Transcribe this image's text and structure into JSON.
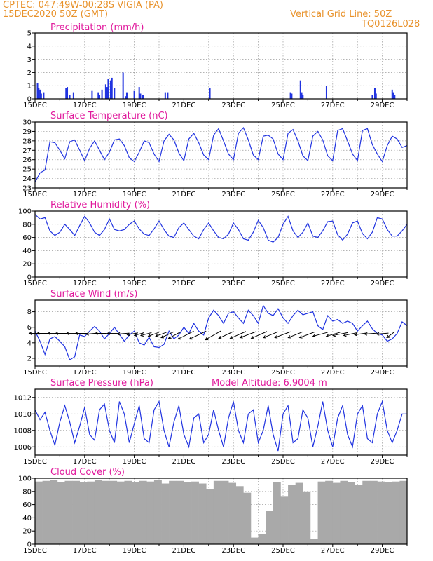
{
  "header": {
    "line1": "CPTEC:   047:49W-00:28S   VIGIA (PA)",
    "line2": "15DEC2020 50Z (GMT)",
    "right1": "Vertical Grid Line: 50Z",
    "right2": "TQ0126L028"
  },
  "colors": {
    "header": "#e8922b",
    "title": "#e0199c",
    "line": "#2033e0",
    "bar": "#2033e0",
    "cloud": "#a9a9a9",
    "grid": "#9a9a9a"
  },
  "xlabels": [
    "15DEC",
    "17DEC",
    "19DEC",
    "21DEC",
    "23DEC",
    "25DEC",
    "27DEC",
    "29DEC"
  ],
  "chart_data": [
    {
      "type": "bar",
      "title": "Precipitation (mm/h)",
      "xlabel": "",
      "ylabel": "",
      "x_range": [
        0,
        15
      ],
      "ylim": [
        0,
        5
      ],
      "yticks": [
        "0",
        "1",
        "2",
        "3",
        "4",
        "5"
      ],
      "grid": true,
      "x": [
        0.1,
        0.15,
        0.2,
        0.25,
        0.35,
        1.25,
        1.3,
        1.4,
        1.55,
        2.3,
        2.55,
        2.6,
        2.7,
        2.85,
        2.9,
        2.95,
        3.05,
        3.1,
        3.2,
        3.55,
        3.65,
        3.7,
        4.0,
        4.2,
        4.25,
        4.35,
        5.25,
        5.35,
        7.05,
        10.3,
        10.35,
        10.7,
        10.75,
        10.8,
        11.75,
        13.6,
        13.7,
        13.75,
        14.4,
        14.45,
        14.5
      ],
      "values": [
        1.2,
        0.8,
        0.7,
        0.4,
        0.5,
        0.8,
        0.9,
        0.3,
        0.5,
        0.6,
        0.5,
        0.3,
        0.7,
        1.1,
        0.9,
        1.5,
        1.4,
        1.6,
        0.8,
        2.0,
        0.2,
        0.5,
        0.6,
        0.9,
        0.4,
        0.3,
        0.5,
        0.5,
        0.8,
        0.5,
        0.4,
        1.4,
        0.5,
        0.3,
        1.0,
        0.3,
        0.8,
        0.4,
        0.7,
        0.5,
        0.3
      ]
    },
    {
      "type": "line",
      "title": "Surface Temperature (nC)",
      "xlabel": "",
      "ylabel": "",
      "x_range": [
        0,
        15
      ],
      "ylim": [
        23,
        30
      ],
      "yticks": [
        "23",
        "24",
        "25",
        "26",
        "27",
        "28",
        "29",
        "30"
      ],
      "grid": true,
      "series": [
        {
          "x": [
            0,
            0.2,
            0.4,
            0.6,
            0.8,
            1.0,
            1.2,
            1.4,
            1.6,
            1.8,
            2.0,
            2.2,
            2.4,
            2.6,
            2.8,
            3.0,
            3.2,
            3.4,
            3.6,
            3.8,
            4.0,
            4.2,
            4.4,
            4.6,
            4.8,
            5.0,
            5.2,
            5.4,
            5.6,
            5.8,
            6.0,
            6.2,
            6.4,
            6.6,
            6.8,
            7.0,
            7.2,
            7.4,
            7.6,
            7.8,
            8.0,
            8.2,
            8.4,
            8.6,
            8.8,
            9.0,
            9.2,
            9.4,
            9.6,
            9.8,
            10.0,
            10.2,
            10.4,
            10.6,
            10.8,
            11.0,
            11.2,
            11.4,
            11.6,
            11.8,
            12.0,
            12.2,
            12.4,
            12.6,
            12.8,
            13.0,
            13.2,
            13.4,
            13.6,
            13.8,
            14.0,
            14.2,
            14.4,
            14.6,
            14.8,
            15.0
          ],
          "values": [
            23.6,
            24.6,
            24.9,
            27.9,
            27.8,
            27.0,
            26.1,
            27.9,
            28.1,
            27.0,
            25.9,
            27.2,
            28.0,
            27.0,
            26.0,
            26.8,
            28.1,
            28.2,
            27.5,
            26.2,
            25.8,
            26.8,
            28.0,
            27.8,
            26.6,
            25.8,
            28.0,
            28.7,
            28.1,
            26.7,
            25.9,
            28.2,
            28.8,
            27.8,
            26.5,
            26.0,
            28.6,
            29.3,
            28.0,
            26.6,
            26.0,
            28.8,
            29.4,
            28.1,
            26.5,
            26.0,
            28.5,
            28.6,
            28.2,
            26.6,
            26.0,
            28.8,
            29.2,
            28.0,
            26.4,
            25.9,
            28.5,
            29.0,
            28.1,
            26.4,
            25.9,
            29.1,
            29.3,
            28.0,
            26.6,
            25.9,
            29.1,
            29.3,
            27.6,
            26.6,
            25.8,
            27.5,
            28.5,
            28.2,
            27.3,
            27.5
          ]
        }
      ]
    },
    {
      "type": "line",
      "title": "Relative Humidity (%)",
      "xlabel": "",
      "ylabel": "",
      "x_range": [
        0,
        15
      ],
      "ylim": [
        0,
        100
      ],
      "yticks": [
        "0",
        "20",
        "40",
        "60",
        "80",
        "100"
      ],
      "grid": true,
      "series": [
        {
          "x": [
            0,
            0.2,
            0.4,
            0.6,
            0.8,
            1.0,
            1.2,
            1.4,
            1.6,
            1.8,
            2.0,
            2.2,
            2.4,
            2.6,
            2.8,
            3.0,
            3.2,
            3.4,
            3.6,
            3.8,
            4.0,
            4.2,
            4.4,
            4.6,
            4.8,
            5.0,
            5.2,
            5.4,
            5.6,
            5.8,
            6.0,
            6.2,
            6.4,
            6.6,
            6.8,
            7.0,
            7.2,
            7.4,
            7.6,
            7.8,
            8.0,
            8.2,
            8.4,
            8.6,
            8.8,
            9.0,
            9.2,
            9.4,
            9.6,
            9.8,
            10.0,
            10.2,
            10.4,
            10.6,
            10.8,
            11.0,
            11.2,
            11.4,
            11.6,
            11.8,
            12.0,
            12.2,
            12.4,
            12.6,
            12.8,
            13.0,
            13.2,
            13.4,
            13.6,
            13.8,
            14.0,
            14.2,
            14.4,
            14.6,
            14.8,
            15.0
          ],
          "values": [
            95,
            88,
            90,
            70,
            63,
            68,
            80,
            72,
            63,
            78,
            92,
            82,
            68,
            63,
            72,
            88,
            72,
            70,
            72,
            80,
            85,
            73,
            65,
            63,
            73,
            85,
            72,
            62,
            60,
            75,
            82,
            72,
            62,
            58,
            72,
            82,
            70,
            60,
            58,
            65,
            82,
            72,
            58,
            56,
            68,
            86,
            75,
            56,
            53,
            60,
            80,
            92,
            70,
            60,
            68,
            82,
            62,
            60,
            70,
            84,
            85,
            64,
            56,
            65,
            82,
            85,
            66,
            58,
            68,
            90,
            88,
            72,
            62,
            62,
            70,
            80
          ]
        }
      ]
    },
    {
      "type": "line",
      "title": "Surface Wind (m/s)",
      "xlabel": "",
      "ylabel": "",
      "x_range": [
        0,
        15
      ],
      "ylim": [
        1,
        9.5
      ],
      "yticks": [
        "2",
        "4",
        "6",
        "8"
      ],
      "grid": true,
      "series": [
        {
          "x": [
            0,
            0.2,
            0.4,
            0.6,
            0.8,
            1.0,
            1.2,
            1.4,
            1.6,
            1.8,
            2.0,
            2.2,
            2.4,
            2.6,
            2.8,
            3.0,
            3.2,
            3.4,
            3.6,
            3.8,
            4.0,
            4.2,
            4.4,
            4.6,
            4.8,
            5.0,
            5.2,
            5.4,
            5.6,
            5.8,
            6.0,
            6.2,
            6.4,
            6.6,
            6.8,
            7.0,
            7.2,
            7.4,
            7.6,
            7.8,
            8.0,
            8.2,
            8.4,
            8.6,
            8.8,
            9.0,
            9.2,
            9.4,
            9.6,
            9.8,
            10.0,
            10.2,
            10.4,
            10.6,
            10.8,
            11.0,
            11.2,
            11.4,
            11.6,
            11.8,
            12.0,
            12.2,
            12.4,
            12.6,
            12.8,
            13.0,
            13.2,
            13.4,
            13.6,
            13.8,
            14.0,
            14.2,
            14.4,
            14.6,
            14.8,
            15.0
          ],
          "values": [
            5.5,
            4.2,
            2.5,
            4.5,
            4.8,
            4.2,
            3.5,
            1.8,
            2.2,
            5.0,
            4.8,
            5.5,
            6.1,
            5.5,
            4.5,
            5.2,
            6.0,
            5.1,
            4.2,
            5.0,
            5.5,
            4.0,
            3.7,
            4.7,
            3.5,
            3.4,
            3.8,
            5.5,
            4.5,
            5.0,
            6.0,
            5.2,
            6.5,
            5.5,
            5.0,
            7.2,
            8.2,
            7.5,
            6.5,
            7.8,
            8.0,
            7.2,
            6.5,
            8.2,
            7.5,
            6.5,
            8.8,
            7.8,
            7.5,
            8.4,
            7.2,
            6.5,
            7.5,
            8.2,
            7.6,
            7.8,
            8.0,
            6.2,
            5.7,
            7.5,
            6.8,
            7.0,
            6.5,
            6.8,
            6.5,
            5.5,
            6.2,
            6.8,
            5.8,
            5.2,
            5.0,
            4.2,
            4.5,
            5.2,
            6.7,
            6.2
          ]
        }
      ],
      "vectors": {
        "x": [
          0.2,
          0.55,
          0.95,
          1.3,
          1.7,
          2.1,
          2.5,
          2.9,
          3.35,
          3.8,
          4.15,
          4.4,
          4.7,
          5.0,
          5.3,
          5.6,
          5.9,
          6.4,
          6.9,
          7.5,
          8.0,
          8.5,
          8.9,
          9.35,
          9.8,
          10.3,
          10.8,
          11.3,
          11.8,
          12.3,
          12.6,
          13.0,
          13.4,
          13.8,
          14.25,
          14.5
        ],
        "dx": [
          -1.1,
          -1.2,
          -1.1,
          -1.2,
          -1.1,
          -1.2,
          -1.1,
          -1.2,
          -1.1,
          -1.2,
          -1.1,
          -1.0,
          -1.1,
          -1.1,
          -1.1,
          -1.3,
          -1.3,
          -1.6,
          -1.7,
          -1.6,
          -1.5,
          -1.6,
          -1.6,
          -1.6,
          -1.5,
          -1.6,
          -1.5,
          -1.6,
          -1.5,
          -1.4,
          -1.5,
          -1.4,
          -1.3,
          -1.3,
          -1.2,
          -0.8
        ],
        "dy": [
          0,
          0,
          0,
          0,
          0,
          0,
          -0.1,
          0,
          0,
          -0.1,
          -0.2,
          -0.3,
          -0.3,
          -0.4,
          -0.4,
          -0.6,
          -0.7,
          -0.8,
          -0.8,
          -0.9,
          -0.7,
          -0.7,
          -0.6,
          -0.7,
          -0.6,
          -0.6,
          -0.6,
          -0.6,
          -0.4,
          -0.4,
          -0.3,
          -0.3,
          -0.2,
          -0.1,
          -0.1,
          -0.6
        ]
      }
    },
    {
      "type": "line",
      "title": "Surface Pressure (hPa)",
      "annotation": "Model Altitude: 6.9004 m",
      "xlabel": "",
      "ylabel": "",
      "x_range": [
        0,
        15
      ],
      "ylim": [
        1005,
        1013
      ],
      "yticks": [
        "1006",
        "1008",
        "1010",
        "1012"
      ],
      "grid": true,
      "series": [
        {
          "x": [
            0,
            0.2,
            0.4,
            0.6,
            0.8,
            1.0,
            1.2,
            1.4,
            1.6,
            1.8,
            2.0,
            2.2,
            2.4,
            2.6,
            2.8,
            3.0,
            3.2,
            3.4,
            3.6,
            3.8,
            4.0,
            4.2,
            4.4,
            4.6,
            4.8,
            5.0,
            5.2,
            5.4,
            5.6,
            5.8,
            6.0,
            6.2,
            6.4,
            6.6,
            6.8,
            7.0,
            7.2,
            7.4,
            7.6,
            7.8,
            8.0,
            8.2,
            8.4,
            8.6,
            8.8,
            9.0,
            9.2,
            9.4,
            9.6,
            9.8,
            10.0,
            10.2,
            10.4,
            10.6,
            10.8,
            11.0,
            11.2,
            11.4,
            11.6,
            11.8,
            12.0,
            12.2,
            12.4,
            12.6,
            12.8,
            13.0,
            13.2,
            13.4,
            13.6,
            13.8,
            14.0,
            14.2,
            14.4,
            14.6,
            14.8,
            15.0
          ],
          "values": [
            1010.5,
            1009.3,
            1010.2,
            1008.0,
            1006.2,
            1009.0,
            1011.0,
            1009.0,
            1006.5,
            1008.5,
            1010.8,
            1007.5,
            1006.8,
            1010.5,
            1011.2,
            1008.0,
            1006.5,
            1011.5,
            1010.0,
            1006.5,
            1008.8,
            1011.0,
            1007.0,
            1006.5,
            1010.5,
            1011.5,
            1008.0,
            1006.0,
            1009.0,
            1011.0,
            1007.5,
            1006.0,
            1009.5,
            1010.0,
            1006.5,
            1007.5,
            1010.5,
            1008.0,
            1006.0,
            1009.5,
            1011.5,
            1008.0,
            1006.5,
            1010.0,
            1010.5,
            1006.5,
            1008.0,
            1011.0,
            1007.5,
            1005.5,
            1010.0,
            1011.0,
            1006.5,
            1007.0,
            1010.5,
            1009.5,
            1006.0,
            1008.5,
            1011.5,
            1008.0,
            1006.0,
            1009.5,
            1011.0,
            1007.5,
            1006.0,
            1010.0,
            1011.0,
            1007.0,
            1006.5,
            1010.0,
            1011.5,
            1008.0,
            1006.5,
            1008.0,
            1010.0,
            1010.0
          ]
        }
      ]
    },
    {
      "type": "bar",
      "title": "Cloud Cover (%)",
      "xlabel": "",
      "ylabel": "",
      "x_range": [
        0,
        15
      ],
      "ylim": [
        0,
        100
      ],
      "yticks": [
        "0",
        "20",
        "40",
        "60",
        "80",
        "100"
      ],
      "grid": true,
      "x": [
        0,
        0.3,
        0.6,
        0.9,
        1.2,
        1.5,
        1.8,
        2.1,
        2.4,
        2.7,
        3.0,
        3.3,
        3.6,
        3.9,
        4.2,
        4.5,
        4.8,
        5.1,
        5.4,
        5.7,
        6.0,
        6.3,
        6.6,
        6.9,
        7.2,
        7.5,
        7.8,
        8.1,
        8.4,
        8.7,
        9.0,
        9.3,
        9.6,
        9.9,
        10.2,
        10.5,
        10.8,
        11.1,
        11.4,
        11.7,
        12.0,
        12.3,
        12.6,
        12.9,
        13.2,
        13.5,
        13.8,
        14.1,
        14.4,
        14.7
      ],
      "values": [
        95,
        96,
        97,
        94,
        96,
        96,
        94,
        95,
        97,
        96,
        96,
        95,
        96,
        94,
        96,
        95,
        97,
        92,
        96,
        96,
        94,
        95,
        92,
        84,
        96,
        96,
        93,
        88,
        78,
        10,
        15,
        50,
        94,
        72,
        90,
        93,
        80,
        8,
        95,
        96,
        93,
        96,
        94,
        90,
        96,
        96,
        95,
        94,
        95,
        96
      ]
    }
  ]
}
